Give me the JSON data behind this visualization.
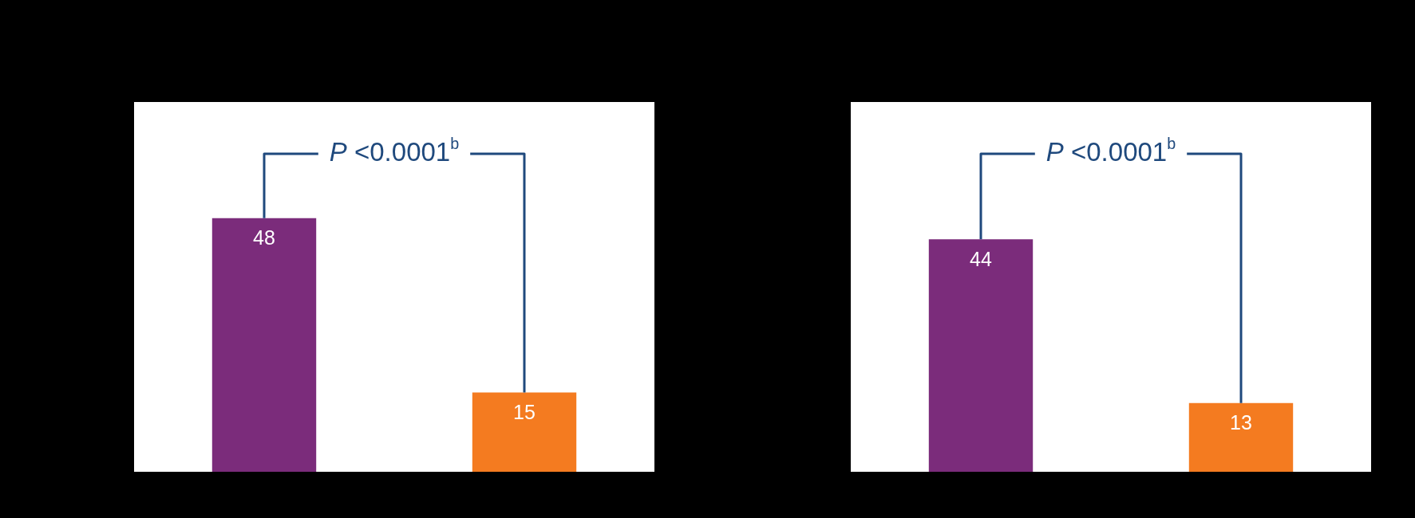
{
  "chart_data": [
    {
      "type": "bar",
      "categories": [
        null,
        null
      ],
      "values": [
        48,
        15
      ],
      "colors": [
        "#7b2c7b",
        "#f47b20"
      ],
      "ylim": [
        0,
        70
      ],
      "data_labels": true,
      "tick_labels": false,
      "annotations": [
        "P <0.0001$^{b}$"
      ]
    },
    {
      "type": "bar",
      "categories": [
        null,
        null
      ],
      "values": [
        44,
        13
      ],
      "colors": [
        "#7b2c7b",
        "#f47b20"
      ],
      "ylim": [
        0,
        70
      ],
      "data_labels": true,
      "tick_labels": false,
      "annotations": [
        "P <0.0001$^{b}$"
      ]
    }
  ]
}
